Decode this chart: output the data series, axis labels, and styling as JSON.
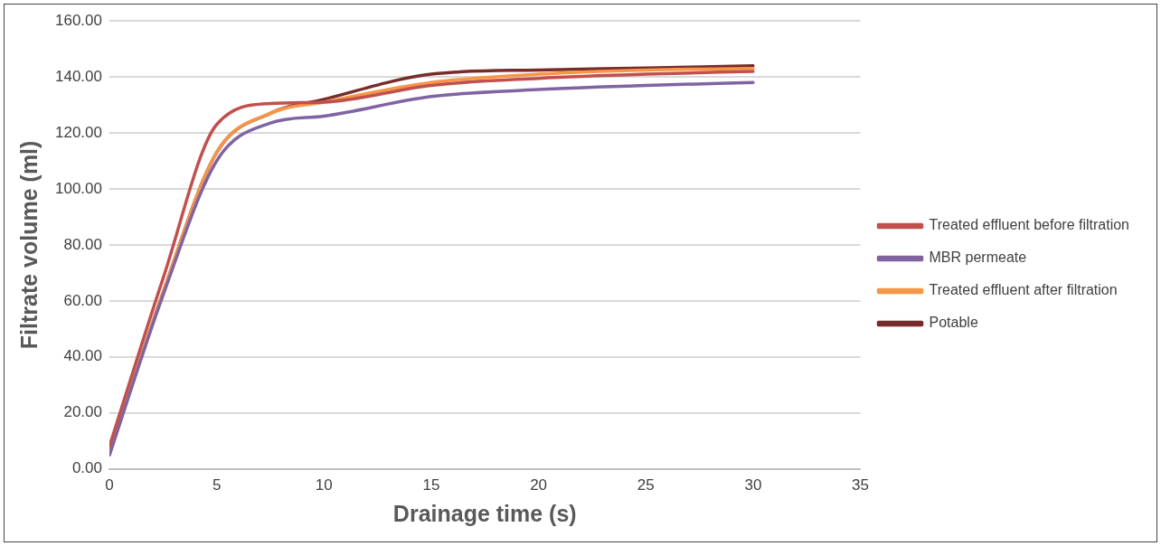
{
  "chart_data": {
    "type": "line",
    "xlabel": "Drainage time (s)",
    "ylabel": "Filtrate volume (ml)",
    "x": [
      0,
      2.5,
      5,
      7.5,
      10,
      15,
      20,
      25,
      30
    ],
    "series": [
      {
        "name": "Treated effluent before filtration",
        "color": "#c0504d",
        "values": [
          8,
          68,
          123,
          130.5,
          131,
          137,
          139.5,
          141,
          142
        ]
      },
      {
        "name": "MBR permeate",
        "color": "#8064a2",
        "values": [
          5,
          62,
          110,
          123.5,
          126,
          133,
          135.5,
          137,
          138
        ]
      },
      {
        "name": "Treated effluent after filtration",
        "color": "#f79646",
        "values": [
          6,
          63,
          113,
          127,
          131,
          138,
          141,
          142.5,
          143
        ]
      },
      {
        "name": "Potable",
        "color": "#772c2a",
        "values": [
          5,
          63,
          113,
          127,
          132,
          141,
          142.5,
          143.2,
          144
        ]
      }
    ],
    "xlim": [
      0,
      35
    ],
    "xticks": [
      0,
      5,
      10,
      15,
      20,
      25,
      30,
      35
    ],
    "ylim": [
      0,
      160
    ],
    "yticks": [
      {
        "value": 0,
        "label": "0.00"
      },
      {
        "value": 20,
        "label": "20.00"
      },
      {
        "value": 40,
        "label": "40.00"
      },
      {
        "value": 60,
        "label": "60.00"
      },
      {
        "value": 80,
        "label": "80.00"
      },
      {
        "value": 100,
        "label": "100.00"
      },
      {
        "value": 120,
        "label": "120.00"
      },
      {
        "value": 140,
        "label": "140.00"
      },
      {
        "value": 160,
        "label": "160.00"
      }
    ],
    "grid": "y",
    "legend": "right",
    "marker": "none",
    "line_style": "solid"
  }
}
